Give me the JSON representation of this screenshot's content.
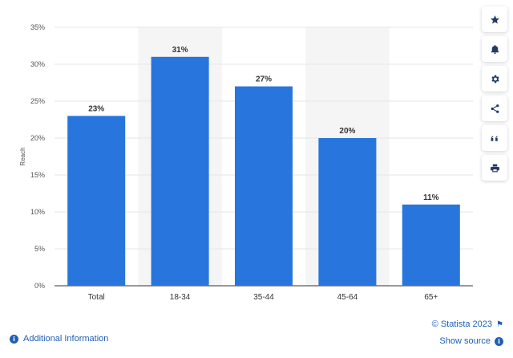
{
  "chart_data": {
    "type": "bar",
    "categories": [
      "Total",
      "18-34",
      "35-44",
      "45-64",
      "65+"
    ],
    "values": [
      23,
      31,
      27,
      20,
      11
    ],
    "value_labels": [
      "23%",
      "31%",
      "27%",
      "20%",
      "11%"
    ],
    "ylabel": "Reach",
    "xlabel": "",
    "ylim": [
      0,
      35
    ],
    "yticks": [
      0,
      5,
      10,
      15,
      20,
      25,
      30,
      35
    ],
    "ytick_labels": [
      "0%",
      "5%",
      "10%",
      "15%",
      "20%",
      "25%",
      "30%",
      "35%"
    ],
    "bar_color": "#2876dd",
    "shaded_categories": [
      "18-34",
      "45-64"
    ],
    "grid": true
  },
  "toolbar": {
    "icons": [
      "star-icon",
      "bell-icon",
      "gear-icon",
      "share-icon",
      "quote-icon",
      "print-icon"
    ]
  },
  "footer": {
    "additional_info": "Additional Information",
    "copyright": "© Statista 2023",
    "show_source": "Show source"
  },
  "colors": {
    "accent": "#1f5fb5",
    "bar": "#2876dd",
    "band": "#f5f5f5",
    "grid": "#e6e6e6"
  }
}
